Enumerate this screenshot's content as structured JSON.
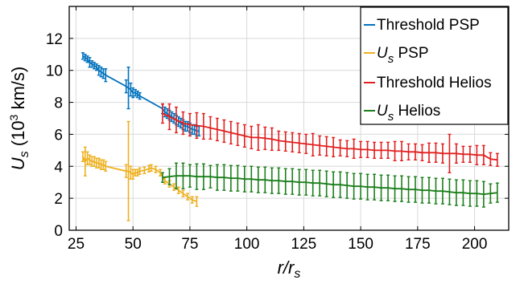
{
  "chart_data": {
    "type": "line",
    "title": "",
    "xlabel": {
      "main": "r/r",
      "sub": "s"
    },
    "ylabel": {
      "main": "U",
      "sub": "s",
      "open": " (10",
      "sup": "3",
      "close": " km/s)"
    },
    "xlim": [
      22,
      215
    ],
    "ylim": [
      0,
      14
    ],
    "xticks": [
      25,
      50,
      75,
      100,
      125,
      150,
      175,
      200
    ],
    "yticks": [
      0,
      2,
      4,
      6,
      8,
      10,
      12
    ],
    "xtick_labels": [
      "25",
      "50",
      "75",
      "100",
      "125",
      "150",
      "175",
      "200"
    ],
    "ytick_labels": [
      "0",
      "2",
      "4",
      "6",
      "8",
      "10",
      "12"
    ],
    "grid": true,
    "legend_position": "top-right",
    "series": [
      {
        "id": "threshold_psp",
        "legend": {
          "main": "Threshold PSP",
          "sub": "",
          "rest": ""
        },
        "color": "#0072BD",
        "x": [
          28,
          29,
          30,
          31,
          32,
          33,
          34,
          35,
          36,
          37,
          38,
          47,
          48,
          49,
          50,
          51,
          52,
          53,
          63,
          64,
          65,
          66,
          67,
          68,
          69,
          70,
          71,
          72,
          73,
          74,
          75,
          76,
          77,
          78,
          79
        ],
        "y": [
          10.9,
          10.8,
          10.7,
          10.5,
          10.4,
          10.3,
          10.2,
          10.0,
          9.9,
          9.8,
          9.7,
          9.0,
          8.9,
          8.8,
          8.6,
          8.6,
          8.5,
          8.4,
          7.6,
          7.4,
          7.3,
          7.2,
          7.1,
          7.0,
          6.9,
          6.8,
          6.7,
          6.6,
          6.5,
          6.5,
          6.4,
          6.3,
          6.3,
          6.2,
          6.2
        ],
        "err": [
          0.2,
          0.2,
          0.2,
          0.3,
          0.2,
          0.2,
          0.2,
          0.3,
          0.3,
          0.3,
          0.4,
          0.4,
          1.3,
          0.4,
          0.3,
          0.2,
          0.2,
          0.2,
          0.3,
          0.3,
          0.3,
          0.3,
          0.3,
          0.3,
          0.3,
          0.3,
          0.3,
          0.3,
          0.3,
          0.3,
          0.3,
          0.3,
          0.3,
          0.3,
          0.3
        ]
      },
      {
        "id": "us_psp",
        "legend": {
          "main": "U",
          "sub": "s",
          "rest": " PSP"
        },
        "color": "#EDB120",
        "x": [
          28,
          29,
          30,
          31,
          32,
          33,
          34,
          35,
          36,
          37,
          38,
          47,
          48,
          49,
          50,
          51,
          52,
          53,
          55,
          57,
          58,
          60,
          62,
          64,
          66,
          68,
          70,
          72,
          74,
          76,
          78
        ],
        "y": [
          4.6,
          4.3,
          4.5,
          4.4,
          4.3,
          4.3,
          4.2,
          4.2,
          4.1,
          4.1,
          4.0,
          3.7,
          3.7,
          3.6,
          3.5,
          3.6,
          3.6,
          3.7,
          3.75,
          3.85,
          3.9,
          3.8,
          3.6,
          3.1,
          2.9,
          2.7,
          2.5,
          2.3,
          2.1,
          1.9,
          1.8
        ],
        "err": [
          0.3,
          0.9,
          0.4,
          0.3,
          0.3,
          0.3,
          0.3,
          0.3,
          0.3,
          0.3,
          0.3,
          0.4,
          3.1,
          0.4,
          0.3,
          0.2,
          0.2,
          0.2,
          0.2,
          0.2,
          0.2,
          0.2,
          0.2,
          0.2,
          0.2,
          0.2,
          0.2,
          0.2,
          0.2,
          0.2,
          0.3
        ]
      },
      {
        "id": "threshold_helios",
        "legend": {
          "main": "Threshold Helios",
          "sub": "",
          "rest": ""
        },
        "color": "#E21F1F",
        "x": [
          63,
          66,
          69,
          72,
          75,
          78,
          81,
          84,
          87,
          90,
          93,
          96,
          99,
          102,
          105,
          108,
          111,
          114,
          117,
          120,
          123,
          126,
          129,
          132,
          135,
          138,
          141,
          144,
          147,
          150,
          153,
          156,
          159,
          162,
          165,
          168,
          171,
          174,
          177,
          180,
          183,
          186,
          189,
          192,
          195,
          198,
          201,
          204,
          207,
          210
        ],
        "y": [
          7.3,
          7.1,
          6.9,
          6.7,
          6.6,
          6.55,
          6.5,
          6.4,
          6.3,
          6.2,
          6.1,
          6.0,
          5.9,
          5.8,
          5.8,
          5.75,
          5.7,
          5.6,
          5.55,
          5.5,
          5.45,
          5.4,
          5.35,
          5.3,
          5.25,
          5.2,
          5.15,
          5.1,
          5.1,
          5.05,
          5.05,
          5.0,
          5.0,
          5.0,
          4.95,
          4.95,
          4.9,
          4.9,
          4.85,
          4.85,
          4.85,
          4.8,
          4.8,
          4.8,
          4.75,
          4.75,
          4.7,
          4.7,
          4.45,
          4.4
        ],
        "err": [
          0.6,
          0.8,
          0.8,
          0.7,
          0.7,
          0.8,
          0.8,
          0.7,
          0.7,
          0.7,
          0.7,
          0.7,
          0.7,
          0.7,
          0.8,
          0.7,
          0.7,
          0.6,
          0.6,
          0.6,
          0.6,
          0.6,
          0.7,
          0.6,
          0.6,
          0.6,
          0.5,
          0.5,
          0.6,
          0.5,
          0.5,
          0.5,
          0.5,
          0.5,
          0.6,
          0.6,
          0.5,
          0.5,
          0.5,
          0.6,
          0.6,
          0.6,
          1.2,
          0.6,
          0.5,
          0.5,
          0.6,
          0.6,
          0.4,
          0.4
        ]
      },
      {
        "id": "us_helios",
        "legend": {
          "main": "U",
          "sub": "s",
          "rest": " Helios"
        },
        "color": "#1B7F1B",
        "x": [
          63,
          66,
          69,
          72,
          75,
          78,
          81,
          84,
          87,
          90,
          93,
          96,
          99,
          102,
          105,
          108,
          111,
          114,
          117,
          120,
          123,
          126,
          129,
          132,
          135,
          138,
          141,
          144,
          147,
          150,
          153,
          156,
          159,
          162,
          165,
          168,
          171,
          174,
          177,
          180,
          183,
          186,
          189,
          192,
          195,
          198,
          201,
          204,
          207,
          210
        ],
        "y": [
          3.3,
          3.35,
          3.4,
          3.4,
          3.4,
          3.35,
          3.35,
          3.35,
          3.3,
          3.3,
          3.25,
          3.25,
          3.2,
          3.2,
          3.15,
          3.15,
          3.1,
          3.1,
          3.05,
          3.05,
          3.0,
          3.0,
          2.95,
          2.95,
          2.9,
          2.85,
          2.85,
          2.8,
          2.75,
          2.75,
          2.7,
          2.7,
          2.65,
          2.65,
          2.6,
          2.6,
          2.55,
          2.55,
          2.5,
          2.5,
          2.45,
          2.45,
          2.4,
          2.35,
          2.35,
          2.3,
          2.3,
          2.25,
          2.3,
          2.35
        ],
        "err": [
          0.3,
          0.5,
          0.8,
          0.8,
          0.7,
          0.8,
          0.8,
          0.7,
          0.8,
          0.8,
          0.8,
          0.8,
          0.8,
          0.8,
          0.8,
          0.8,
          0.8,
          0.8,
          0.8,
          0.8,
          0.8,
          0.8,
          0.8,
          0.8,
          0.8,
          0.8,
          0.8,
          0.8,
          0.8,
          0.8,
          0.8,
          0.8,
          0.8,
          0.8,
          0.8,
          0.8,
          0.8,
          0.8,
          0.8,
          0.8,
          0.8,
          0.8,
          0.8,
          0.8,
          0.8,
          0.8,
          0.8,
          0.8,
          0.6,
          0.6
        ]
      }
    ]
  }
}
